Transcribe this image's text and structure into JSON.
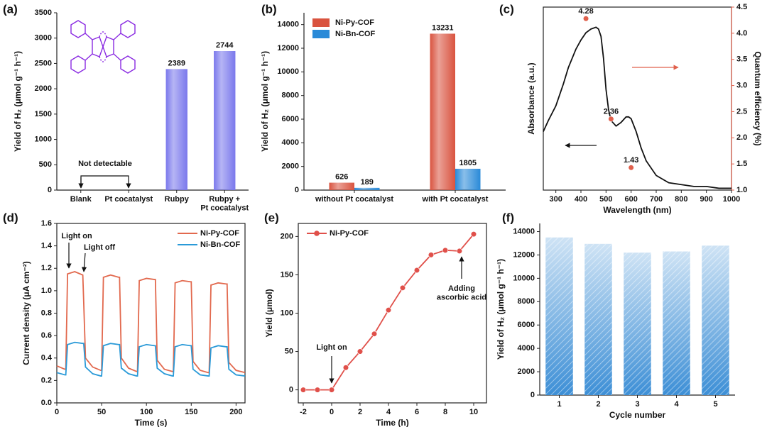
{
  "chart_data": [
    {
      "type": "bar",
      "panel_label": "(a)",
      "ylabel": "Yield of H₂ (μmol g⁻¹ h⁻¹)",
      "categories": [
        "Blank",
        "Pt cocatalyst",
        "Rubpy",
        "Rubpy +\nPt cocatalyst"
      ],
      "values": [
        null,
        null,
        2389,
        2744
      ],
      "color": "#7a78ec",
      "ylim": [
        0,
        3500
      ],
      "yticks": [
        0,
        500,
        1000,
        1500,
        2000,
        2500,
        3000,
        3500
      ],
      "show_values": true,
      "annotations": [
        "Not detectable"
      ]
    },
    {
      "type": "bar",
      "panel_label": "(b)",
      "ylabel": "Yield of H₂ (μmol g⁻¹ h⁻¹)",
      "categories": [
        "without Pt cocatalyst",
        "with Pt cocatalyst"
      ],
      "series": [
        {
          "name": "Ni-Py-COF",
          "color": "#d9533f",
          "values": [
            626,
            13231
          ]
        },
        {
          "name": "Ni-Bn-COF",
          "color": "#2a8ad8",
          "values": [
            189,
            1805
          ]
        }
      ],
      "ylim": [
        0,
        15000
      ],
      "yticks": [
        0,
        2000,
        4000,
        6000,
        8000,
        10000,
        12000,
        14000
      ],
      "show_values": true,
      "legend": "upper left"
    },
    {
      "type": "line",
      "panel_label": "(c)",
      "xlabel": "Wavelength (nm)",
      "ylabel": "Absorbance (a.u.)",
      "y2label": "Quantum efficiency (%)",
      "xlim": [
        250,
        1000
      ],
      "xticks": [
        300,
        400,
        500,
        600,
        700,
        800,
        900,
        1000
      ],
      "ylim": [
        0,
        1
      ],
      "y2lim": [
        1,
        4.5
      ],
      "y2ticks": [
        {
          "value": 1,
          "label": "1.0"
        },
        1.5,
        {
          "value": 2,
          "label": "2.0"
        },
        2.5,
        {
          "value": 3,
          "label": "3.0"
        },
        3.5,
        {
          "value": 4,
          "label": "4.0"
        },
        4.5
      ],
      "series": [
        {
          "color": "#111111",
          "x": [
            250,
            270,
            300,
            330,
            350,
            380,
            400,
            420,
            440,
            460,
            470,
            480,
            490,
            500,
            510,
            520,
            540,
            560,
            580,
            590,
            600,
            620,
            640,
            660,
            700,
            750,
            800,
            850,
            900,
            950,
            1000
          ],
          "values": [
            0.32,
            0.38,
            0.46,
            0.58,
            0.67,
            0.77,
            0.82,
            0.86,
            0.88,
            0.89,
            0.88,
            0.84,
            0.72,
            0.55,
            0.44,
            0.38,
            0.35,
            0.37,
            0.4,
            0.4,
            0.39,
            0.32,
            0.23,
            0.16,
            0.08,
            0.04,
            0.03,
            0.02,
            0.02,
            0.01,
            0.01
          ]
        },
        {
          "color": "#e0604c",
          "axis": "y2",
          "style": "markers",
          "show_values": true,
          "x": [
            420,
            520,
            600
          ],
          "values": [
            4.28,
            2.36,
            1.43
          ]
        }
      ]
    },
    {
      "type": "line",
      "panel_label": "(d)",
      "xlabel": "Time (s)",
      "ylabel": "Current density (μA cm⁻²)",
      "xlim": [
        0,
        210
      ],
      "xticks": [
        0,
        50,
        100,
        150,
        200
      ],
      "ylim": [
        0,
        1.6
      ],
      "yticks": [
        {
          "value": 0,
          "label": "0.0"
        },
        0.2,
        0.4,
        0.6,
        0.8,
        {
          "value": 1,
          "label": "1.0"
        },
        1.2,
        1.4,
        1.6
      ],
      "x": [
        0,
        9,
        10,
        12,
        20,
        29,
        30,
        32,
        40,
        49,
        50,
        52,
        60,
        69,
        70,
        72,
        80,
        89,
        90,
        92,
        100,
        109,
        110,
        112,
        120,
        129,
        130,
        132,
        140,
        149,
        150,
        152,
        160,
        169,
        170,
        172,
        180,
        189,
        190,
        192,
        200,
        210
      ],
      "series": [
        {
          "name": "Ni-Py-COF",
          "color": "#e2694e",
          "values": [
            0.33,
            0.3,
            0.3,
            1.15,
            1.17,
            1.14,
            0.9,
            0.4,
            0.32,
            0.29,
            0.29,
            1.12,
            1.14,
            1.12,
            1.12,
            0.4,
            0.31,
            0.28,
            0.28,
            1.09,
            1.11,
            1.1,
            1.1,
            0.38,
            0.3,
            0.28,
            0.28,
            1.07,
            1.09,
            1.08,
            1.08,
            0.37,
            0.29,
            0.27,
            0.27,
            1.05,
            1.07,
            1.06,
            1.06,
            0.36,
            0.29,
            0.27
          ]
        },
        {
          "name": "Ni-Bn-COF",
          "color": "#2a9ad8",
          "values": [
            0.27,
            0.25,
            0.25,
            0.52,
            0.54,
            0.53,
            0.53,
            0.32,
            0.26,
            0.24,
            0.24,
            0.51,
            0.53,
            0.52,
            0.52,
            0.31,
            0.26,
            0.24,
            0.24,
            0.5,
            0.52,
            0.51,
            0.51,
            0.31,
            0.26,
            0.24,
            0.24,
            0.5,
            0.52,
            0.51,
            0.51,
            0.3,
            0.25,
            0.24,
            0.24,
            0.49,
            0.51,
            0.5,
            0.5,
            0.3,
            0.25,
            0.24
          ]
        }
      ],
      "legend": "upper right",
      "annotations": [
        "Light on",
        "Light off"
      ]
    },
    {
      "type": "line",
      "panel_label": "(e)",
      "xlabel": "Time (h)",
      "ylabel": "Yield (μmol)",
      "xlim": [
        -2.35,
        10.9
      ],
      "xticks": [
        -2,
        0,
        2,
        4,
        6,
        8,
        10
      ],
      "ylim": [
        -17,
        217
      ],
      "yticks": [
        0,
        50,
        100,
        150,
        200
      ],
      "x": [
        -2,
        -1,
        0,
        1,
        2,
        3,
        4,
        5,
        6,
        7,
        8,
        9,
        10
      ],
      "series": [
        {
          "name": "Ni-Py-COF",
          "color": "#e0504a",
          "values": [
            0,
            0,
            0,
            29,
            50,
            73,
            104,
            133,
            156,
            176,
            182,
            181,
            203
          ]
        }
      ],
      "markers": true,
      "legend": "upper left",
      "annotations": [
        "Light on",
        "Adding\nascorbic acid"
      ]
    },
    {
      "type": "bar",
      "panel_label": "(f)",
      "xlabel": "Cycle number",
      "ylabel": "Yield of H₂ (μmol g⁻¹ h⁻¹)",
      "categories": [
        "1",
        "2",
        "3",
        "4",
        "5"
      ],
      "values": [
        13500,
        12950,
        12200,
        12300,
        12800
      ],
      "color": "#3d8fd6",
      "ylim": [
        0,
        14700
      ],
      "yticks": [
        0,
        2000,
        4000,
        6000,
        8000,
        10000,
        12000,
        14000
      ],
      "hatched": true
    }
  ]
}
